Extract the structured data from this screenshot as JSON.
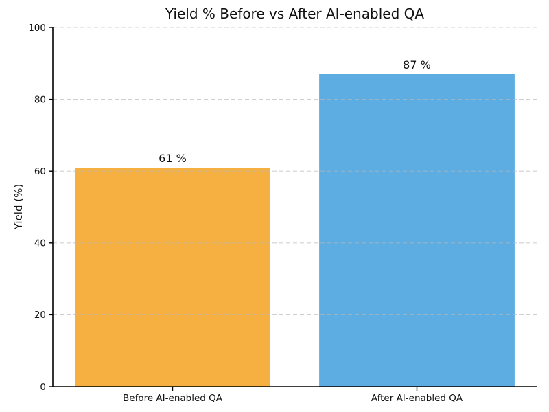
{
  "chart_data": {
    "type": "bar",
    "title": "Yield % Before vs After AI-enabled QA",
    "ylabel": "Yield (%)",
    "xlabel": "",
    "categories": [
      "Before AI-enabled QA",
      "After AI-enabled QA"
    ],
    "values": [
      61,
      87
    ],
    "value_labels": [
      "61 %",
      "87 %"
    ],
    "bar_colors": [
      "#f5b041",
      "#5dade2"
    ],
    "ylim": [
      0,
      100
    ],
    "yticks": [
      0,
      20,
      40,
      60,
      80,
      100
    ],
    "grid": "horizontal-dashed",
    "grid_color": "#b8b8b8",
    "legend": "none",
    "spine_color": "#000000",
    "background_color": "#ffffff"
  }
}
